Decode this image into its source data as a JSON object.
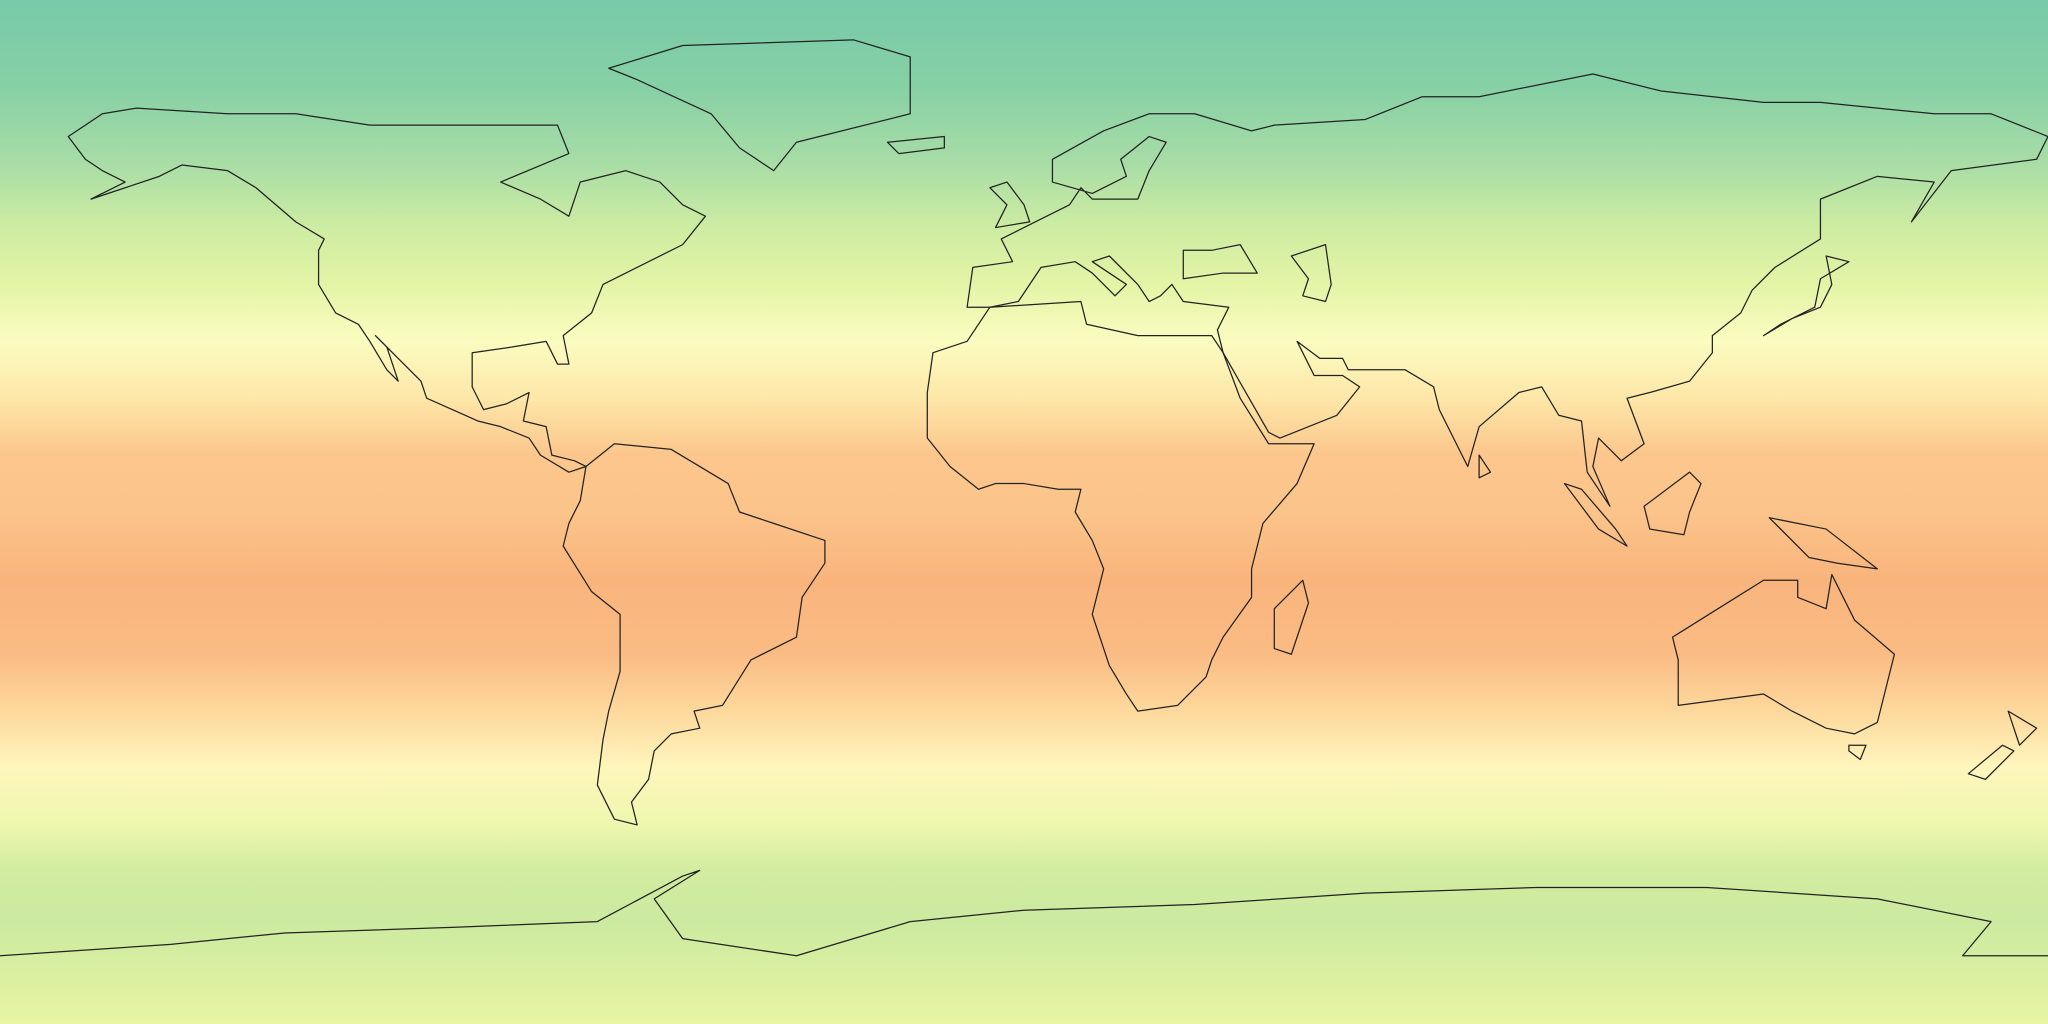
{
  "map": {
    "projection": "equirectangular",
    "extent": {
      "lon": [
        -180,
        180
      ],
      "lat": [
        -90,
        90
      ]
    },
    "field_colors": [
      {
        "lat": 90,
        "color": "#78caa8"
      },
      {
        "lat": 75,
        "color": "#86d0a6"
      },
      {
        "lat": 62,
        "color": "#a6dca6"
      },
      {
        "lat": 50,
        "color": "#cdeca2"
      },
      {
        "lat": 40,
        "color": "#e4f4a6"
      },
      {
        "lat": 30,
        "color": "#fbfcc0"
      },
      {
        "lat": 20,
        "color": "#fde7a8"
      },
      {
        "lat": 10,
        "color": "#fcc68c"
      },
      {
        "lat": 0,
        "color": "#fbc48a"
      },
      {
        "lat": -12,
        "color": "#f9b47c"
      },
      {
        "lat": -25,
        "color": "#fabc84"
      },
      {
        "lat": -35,
        "color": "#fdd89c"
      },
      {
        "lat": -45,
        "color": "#fef6bc"
      },
      {
        "lat": -55,
        "color": "#eef7ae"
      },
      {
        "lat": -63,
        "color": "#d2eca0"
      },
      {
        "lat": -72,
        "color": "#cbeaa0"
      },
      {
        "lat": -90,
        "color": "#e8f5a2"
      }
    ],
    "coastline_color": "#222222"
  }
}
